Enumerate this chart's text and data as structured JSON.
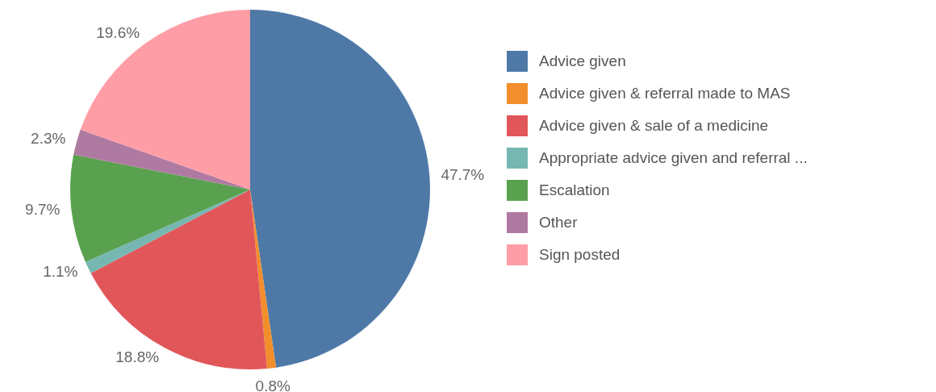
{
  "chart_data": {
    "type": "pie",
    "categories": [
      "Advice given",
      "Advice given & referral made to MAS",
      "Advice given & sale of a medicine",
      "Appropriate advice given and referral ...",
      "Escalation",
      "Other",
      "Sign posted"
    ],
    "values": [
      47.7,
      0.8,
      18.8,
      1.1,
      9.7,
      2.3,
      19.6
    ],
    "value_labels": [
      "47.7%",
      "0.8%",
      "18.8%",
      "1.1%",
      "9.7%",
      "2.3%",
      "19.6%"
    ],
    "colors": [
      "#4e79a7",
      "#f28e2b",
      "#e15759",
      "#76b7b2",
      "#59a14f",
      "#af7aa1",
      "#ff9da7"
    ],
    "legend": "right"
  }
}
